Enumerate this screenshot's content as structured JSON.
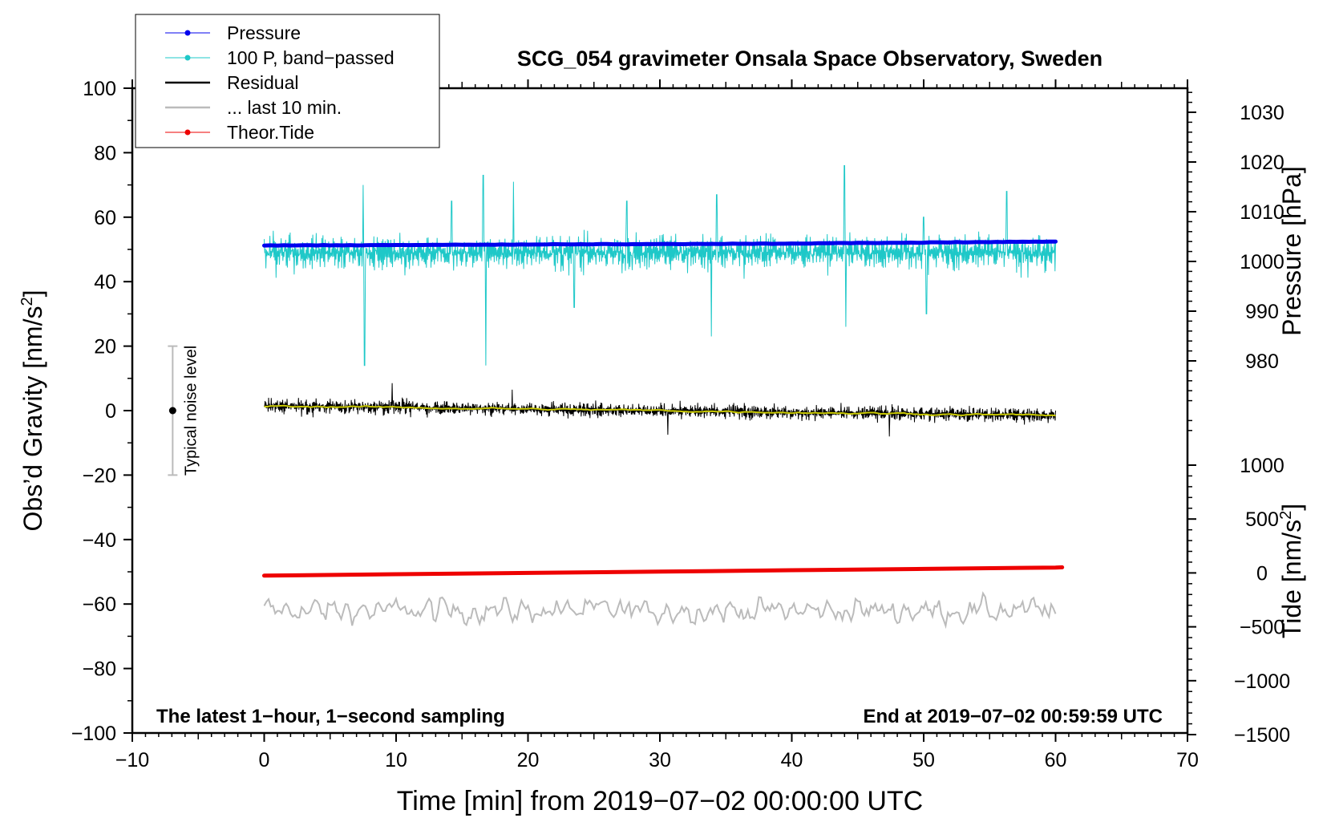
{
  "chart_data": {
    "type": "line",
    "title": "SCG_054 gravimeter Onsala Space Observatory, Sweden",
    "xlabel": "Time [min] from 2019−07−02 00:00:00 UTC",
    "ylabel_left": "Obs’d Gravity [nm/s²]",
    "ylabel_right_top": "Pressure [hPa]",
    "ylabel_right_bottom": "Tide [nm/s²]",
    "xlim": [
      -10,
      70
    ],
    "ylim": [
      -100,
      100
    ],
    "pressure_lim": [
      965,
      1035
    ],
    "tide_lim": [
      -1500,
      1500
    ],
    "x_ticks": [
      -10,
      0,
      10,
      20,
      30,
      40,
      50,
      60,
      70
    ],
    "x_tick_labels": [
      "−10",
      "0",
      "10",
      "20",
      "30",
      "40",
      "50",
      "60",
      "70"
    ],
    "y_ticks": [
      -100,
      -80,
      -60,
      -40,
      -20,
      0,
      20,
      40,
      60,
      80,
      100
    ],
    "y_tick_labels": [
      "−100",
      "−80",
      "−60",
      "−40",
      "−20",
      "0",
      "20",
      "40",
      "60",
      "80",
      "100"
    ],
    "pressure_ticks": [
      980,
      990,
      1000,
      1010,
      1020,
      1030
    ],
    "pressure_tick_labels": [
      "980",
      "990",
      "1000",
      "1010",
      "1020",
      "1030"
    ],
    "tide_ticks": [
      -1500,
      -1000,
      -500,
      0,
      500,
      1000
    ],
    "tide_tick_labels": [
      "−1500",
      "−1000",
      "−500",
      "0",
      "500",
      "1000"
    ],
    "grid": false,
    "legend_position": "top-left",
    "legend": [
      {
        "label": "Pressure",
        "color": "#0000ee",
        "marker": true
      },
      {
        "label": "100 P, band−passed",
        "color": "#1ec8c8",
        "marker": true
      },
      {
        "label": "Residual",
        "color": "#000000",
        "marker": false
      },
      {
        "label": "... last 10 min.",
        "color": "#bbbbbb",
        "marker": false
      },
      {
        "label": "Theor.Tide",
        "color": "#ee0000",
        "marker": true
      }
    ],
    "annotations": {
      "left_bottom": "The latest 1−hour, 1−second sampling",
      "right_bottom": "End at 2019−07−02 00:59:59 UTC",
      "noise_label": "Typical noise level"
    },
    "noise_bar": {
      "x": -7,
      "center": 0,
      "low": -20,
      "high": 20
    },
    "series": [
      {
        "name": "Pressure",
        "axis": "pressure",
        "color": "#0000ee",
        "x": [
          0,
          10,
          20,
          30,
          40,
          50,
          60
        ],
        "values": [
          1003.2,
          1003.3,
          1003.4,
          1003.5,
          1003.6,
          1003.8,
          1004.0
        ]
      },
      {
        "name": "100 P, band−passed",
        "axis": "gravity",
        "color": "#1ec8c8",
        "x_range": [
          0,
          60
        ],
        "center": 49,
        "amplitude": 6,
        "spikes": [
          [
            7.5,
            70
          ],
          [
            7.6,
            14
          ],
          [
            14.2,
            65
          ],
          [
            16.6,
            73
          ],
          [
            16.8,
            14
          ],
          [
            18.9,
            71
          ],
          [
            23.5,
            32
          ],
          [
            27.5,
            65
          ],
          [
            33.9,
            23
          ],
          [
            34.3,
            67
          ],
          [
            44.0,
            76
          ],
          [
            44.1,
            26
          ],
          [
            50.0,
            60
          ],
          [
            50.2,
            30
          ],
          [
            56.3,
            68
          ]
        ]
      },
      {
        "name": "Residual",
        "axis": "gravity",
        "color": "#000000",
        "x_range": [
          0,
          60
        ],
        "start": 1.5,
        "end": -1.5,
        "amplitude": 3,
        "spikes": [
          [
            9.7,
            8.5
          ],
          [
            18.8,
            6.5
          ],
          [
            30.6,
            -7.5
          ],
          [
            47.4,
            -8
          ]
        ]
      },
      {
        "name": "Residual (smoothed)",
        "axis": "gravity",
        "color": "#c8c800",
        "x_range": [
          0,
          60
        ],
        "start": 1.5,
        "end": -1.5
      },
      {
        "name": "... last 10 min.",
        "axis": "gravity",
        "color": "#bbbbbb",
        "x_range": [
          0,
          60
        ],
        "center": -62,
        "amplitude": 3.5
      },
      {
        "name": "Theor.Tide",
        "axis": "tide",
        "color": "#ee0000",
        "x": [
          0,
          10,
          20,
          30,
          40,
          50,
          60,
          60.5
        ],
        "values": [
          -25,
          -12,
          0,
          12,
          25,
          37,
          50,
          52
        ]
      }
    ]
  }
}
